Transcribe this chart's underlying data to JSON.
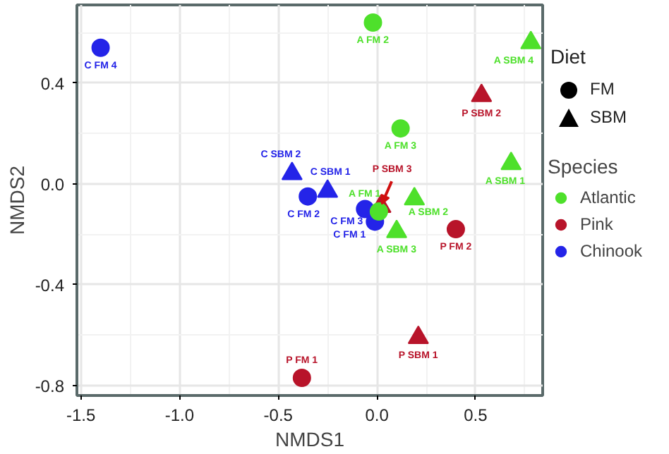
{
  "chart_data": {
    "type": "scatter",
    "xlabel": "NMDS1",
    "ylabel": "NMDS2",
    "legend_title": "Species",
    "xlim": [
      -1.52,
      0.84
    ],
    "ylim": [
      -0.84,
      0.71
    ],
    "xticks": [
      {
        "value": -1.5,
        "label": "-1.5"
      },
      {
        "value": -1.0,
        "label": "-1.0"
      },
      {
        "value": -0.5,
        "label": "-0.5"
      },
      {
        "value": 0.0,
        "label": "0.0"
      },
      {
        "value": 0.5,
        "label": "0.5"
      }
    ],
    "yticks": [
      {
        "value": -0.8,
        "label": "-0.8"
      },
      {
        "value": -0.4,
        "label": "-0.4"
      },
      {
        "value": 0.0,
        "label": "0.0"
      },
      {
        "value": 0.4,
        "label": "0.4"
      }
    ],
    "grid": true,
    "legend": "right",
    "series": [
      {
        "name": "Atlantic",
        "color": "#4ee02b",
        "marker": "circle",
        "x": [
          0.01,
          -0.02,
          0.12
        ],
        "values": [
          -0.11,
          0.64,
          0.22
        ]
      },
      {
        "color": "#4ee02b",
        "marker": "triangle",
        "x": [
          0.68,
          0.19,
          0.1,
          0.78
        ],
        "values": [
          0.08,
          -0.06,
          -0.19,
          0.56
        ]
      },
      {
        "name": "Pink",
        "color": "#b8142a",
        "marker": "circle",
        "x": [
          -0.38,
          0.4
        ],
        "values": [
          -0.77,
          -0.18
        ]
      },
      {
        "color": "#b8142a",
        "marker": "triangle",
        "x": [
          0.21,
          0.53,
          0.02
        ],
        "values": [
          -0.61,
          0.35,
          -0.09
        ]
      },
      {
        "name": "Chinook",
        "color": "#2424e8",
        "marker": "circle",
        "x": [
          -0.01,
          -0.35,
          -0.06,
          -1.4
        ],
        "values": [
          -0.15,
          -0.05,
          -0.1,
          0.54
        ]
      },
      {
        "color": "#2424e8",
        "marker": "triangle",
        "x": [
          -0.25,
          -0.43
        ],
        "values": [
          -0.03,
          0.04
        ]
      }
    ],
    "annotations": [
      "Diet",
      "FM",
      "SBM",
      {
        "text": "A FM 1",
        "x": 0.01,
        "y": -0.11
      },
      {
        "text": "A FM 2",
        "x": -0.02,
        "y": 0.64
      },
      {
        "text": "A FM 3",
        "x": 0.12,
        "y": 0.22
      },
      {
        "text": "A SBM 1",
        "x": 0.68,
        "y": 0.08
      },
      {
        "text": "A SBM 2",
        "x": 0.19,
        "y": -0.06
      },
      {
        "text": "A SBM 3",
        "x": 0.1,
        "y": -0.19
      },
      {
        "text": "A SBM 4",
        "x": 0.78,
        "y": 0.56
      },
      {
        "text": "P FM 1",
        "x": -0.38,
        "y": -0.77
      },
      {
        "text": "P FM 2",
        "x": 0.4,
        "y": -0.18
      },
      {
        "text": "P SBM 1",
        "x": 0.21,
        "y": -0.61
      },
      {
        "text": "P SBM 2",
        "x": 0.53,
        "y": 0.35
      },
      {
        "text": "P SBM 3",
        "x": 0.02,
        "y": -0.09
      },
      {
        "text": "C FM 1",
        "x": -0.01,
        "y": -0.15
      },
      {
        "text": "C FM 2",
        "x": -0.35,
        "y": -0.05
      },
      {
        "text": "C FM 3",
        "x": -0.06,
        "y": -0.1
      },
      {
        "text": "C FM 4",
        "x": -1.4,
        "y": 0.54
      },
      {
        "text": "C SBM 1",
        "x": -0.25,
        "y": -0.03
      },
      {
        "text": "C SBM 2",
        "x": -0.43,
        "y": 0.04
      }
    ]
  }
}
